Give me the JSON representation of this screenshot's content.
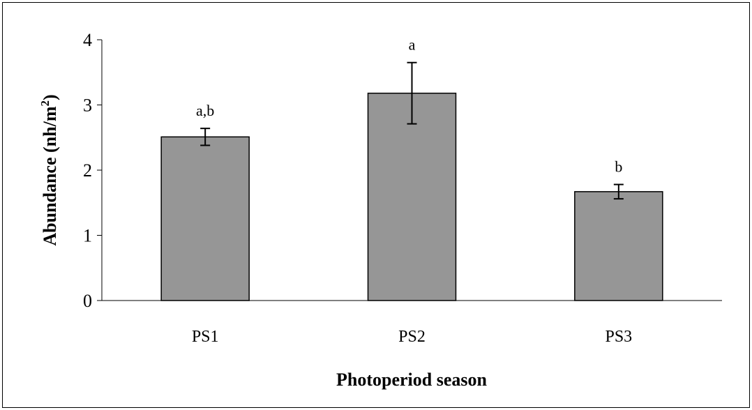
{
  "chart_data": {
    "type": "bar",
    "title": "",
    "xlabel": "Photoperiod season",
    "ylabel": "Abundance (nh/m",
    "ylabel_sup": "2",
    "ylabel_tail": ")",
    "categories": [
      "PS1",
      "PS2",
      "PS3"
    ],
    "values": [
      2.51,
      3.18,
      1.67
    ],
    "error": [
      0.13,
      0.47,
      0.11
    ],
    "annotations": [
      "a,b",
      "a",
      "b"
    ],
    "ylim": [
      0,
      4
    ],
    "yticks": [
      "0",
      "1",
      "2",
      "3",
      "4"
    ],
    "grid": false,
    "legend": "none",
    "bar_color": "#969696"
  }
}
